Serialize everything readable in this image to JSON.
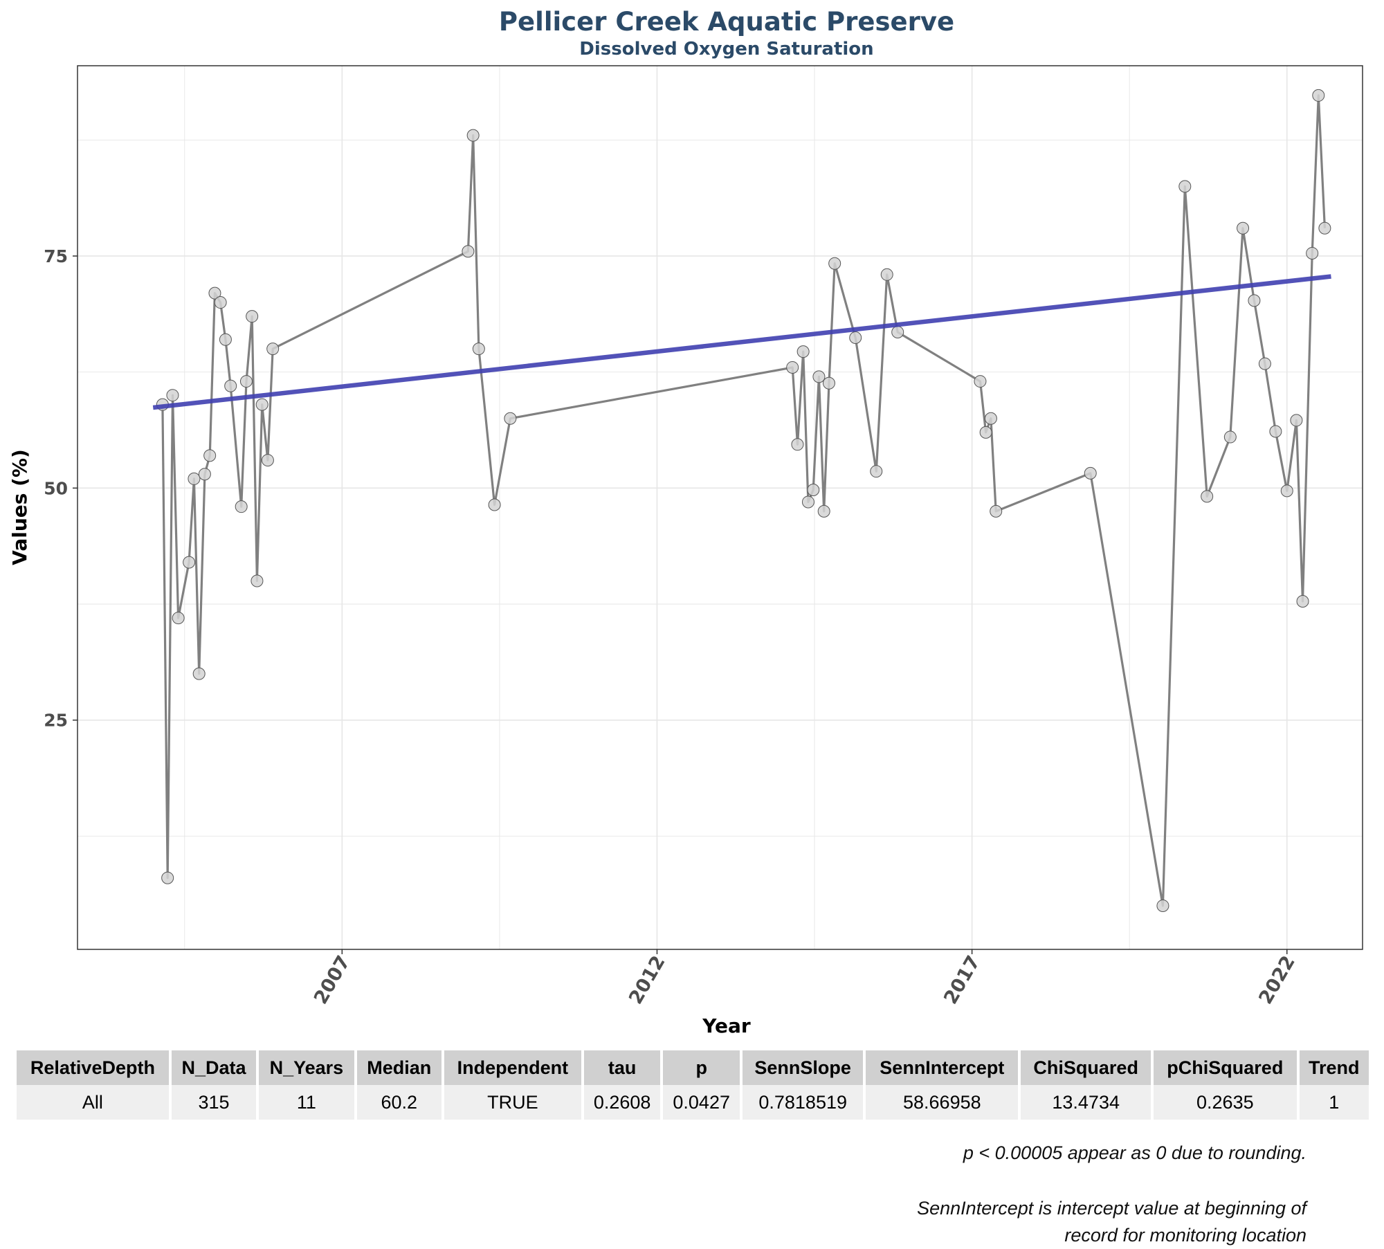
{
  "chart_data": {
    "type": "line",
    "title": "Pellicer Creek Aquatic Preserve",
    "subtitle": "Dissolved Oxygen Saturation",
    "xlabel": "Year",
    "ylabel": "Values (%)",
    "xlim": [
      2002.8,
      2023.2
    ],
    "ylim": [
      0.3,
      95.5
    ],
    "xticks": [
      2007,
      2012,
      2017,
      2022
    ],
    "yticks": [
      25,
      50,
      75
    ],
    "grid": true,
    "legend": "none",
    "colors": {
      "line": "#808080",
      "point_fill": "#d3d3d3",
      "point_stroke": "#555555",
      "trend": "#3f3fb0",
      "grid": "#e6e6e6"
    },
    "series": [
      {
        "x": [
          2004.15,
          2004.23,
          2004.31,
          2004.4,
          2004.57,
          2004.65,
          2004.73,
          2004.82,
          2004.9,
          2004.98,
          2005.07,
          2005.15,
          2005.23,
          2005.4,
          2005.48,
          2005.57,
          2005.65,
          2005.73,
          2005.82,
          2005.9,
          2009.0,
          2009.08,
          2009.17,
          2009.42,
          2009.67,
          2014.15,
          2014.23,
          2014.32,
          2014.4,
          2014.48,
          2014.57,
          2014.65,
          2014.73,
          2014.82,
          2015.15,
          2015.48,
          2015.65,
          2015.82,
          2017.13,
          2017.22,
          2017.3,
          2017.38,
          2018.88,
          2020.03,
          2020.38,
          2020.73,
          2021.1,
          2021.3,
          2021.48,
          2021.65,
          2021.82,
          2022.0,
          2022.15,
          2022.25,
          2022.4,
          2022.5,
          2022.6
        ],
        "y": [
          59.0,
          8.0,
          60.0,
          36.0,
          42.0,
          51.0,
          30.0,
          51.5,
          53.5,
          71.0,
          70.0,
          66.0,
          61.0,
          48.0,
          61.5,
          68.5,
          40.0,
          59.0,
          53.0,
          65.0,
          75.5,
          88.0,
          65.0,
          48.2,
          57.5,
          63.0,
          54.7,
          64.7,
          48.5,
          49.8,
          62.0,
          47.5,
          61.3,
          74.2,
          66.2,
          51.8,
          73.0,
          66.8,
          61.5,
          56.0,
          57.5,
          47.5,
          51.6,
          5.0,
          82.5,
          49.1,
          55.5,
          78.0,
          70.2,
          63.4,
          56.1,
          49.7,
          57.3,
          37.8,
          75.3,
          92.3,
          78.0
        ]
      }
    ],
    "trendline": {
      "x": [
        2004.0,
        2022.7
      ],
      "y": [
        58.67,
        72.8
      ]
    }
  },
  "stats_table": {
    "headers": [
      "RelativeDepth",
      "N_Data",
      "N_Years",
      "Median",
      "Independent",
      "tau",
      "p",
      "SennSlope",
      "SennIntercept",
      "ChiSquared",
      "pChiSquared",
      "Trend"
    ],
    "row": [
      "All",
      "315",
      "11",
      "60.2",
      "TRUE",
      "0.2608",
      "0.0427",
      "0.7818519",
      "58.66958",
      "13.4734",
      "0.2635",
      "1"
    ]
  },
  "footnotes": {
    "rounding": "p < 0.00005 appear as 0 due to rounding.",
    "intercept_line1": "SennIntercept is intercept value at beginning of",
    "intercept_line2": "record for monitoring location"
  }
}
